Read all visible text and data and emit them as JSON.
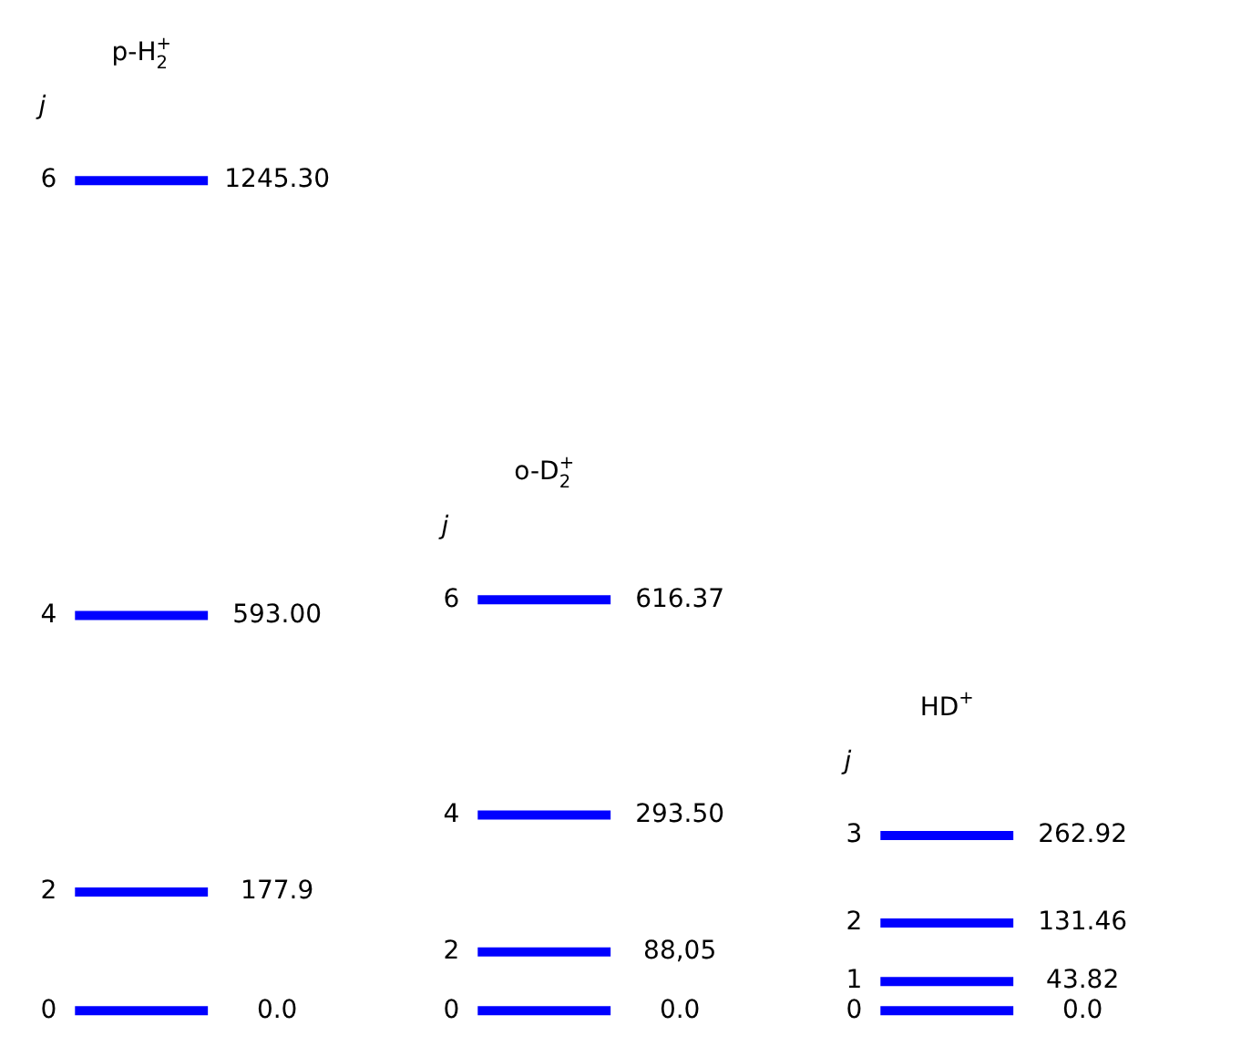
{
  "chart_data": [
    {
      "type": "other",
      "title": "p-H$_{2}$$^{+}$",
      "ylabel": "j",
      "color": "#0000ff",
      "categories": [
        "0",
        "2",
        "4",
        "6"
      ],
      "values": [
        0.0,
        177.9,
        593.0,
        1245.3
      ],
      "value_labels": [
        "0.0",
        "177.9",
        "593.00",
        "1245.30"
      ]
    },
    {
      "type": "other",
      "title": "o-D$_{2}$$^{+}$",
      "ylabel": "j",
      "color": "#0000ff",
      "categories": [
        "0",
        "2",
        "4",
        "6"
      ],
      "values": [
        0.0,
        88.05,
        293.5,
        616.37
      ],
      "value_labels": [
        "0.0",
        "88,05",
        "293.50",
        "616.37"
      ]
    },
    {
      "type": "other",
      "title": "HD$^{+}$",
      "ylabel": "j",
      "color": "#0000ff",
      "categories": [
        "0",
        "1",
        "2",
        "3"
      ],
      "values": [
        0.0,
        43.82,
        131.46,
        262.92
      ],
      "value_labels": [
        "0.0",
        "43.82",
        "131.46",
        "262.92"
      ]
    }
  ]
}
